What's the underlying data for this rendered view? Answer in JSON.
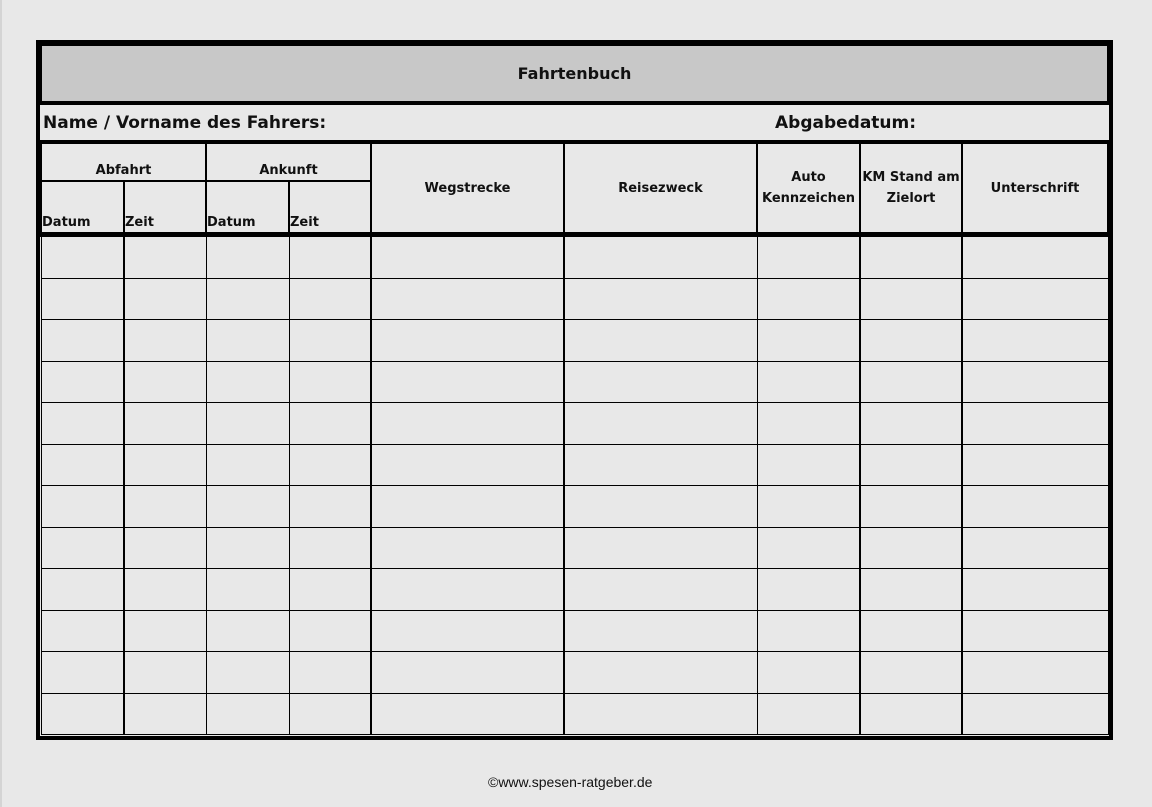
{
  "title": "Fahrtenbuch",
  "name_label": "Name / Vorname des Fahrers:",
  "date_label": "Abgabedatum:",
  "headers": {
    "abfahrt": "Abfahrt",
    "ankunft": "Ankunft",
    "datum": "Datum",
    "zeit": "Zeit",
    "wegstrecke": "Wegstrecke",
    "reisezweck": "Reisezweck",
    "auto_line1": "Auto",
    "auto_line2": "Kennzeichen",
    "km_line1": "KM Stand am",
    "km_line2": "Zielort",
    "unterschrift": "Unterschrift"
  },
  "empty_rows": 12,
  "footer": "©www.spesen-ratgeber.de"
}
